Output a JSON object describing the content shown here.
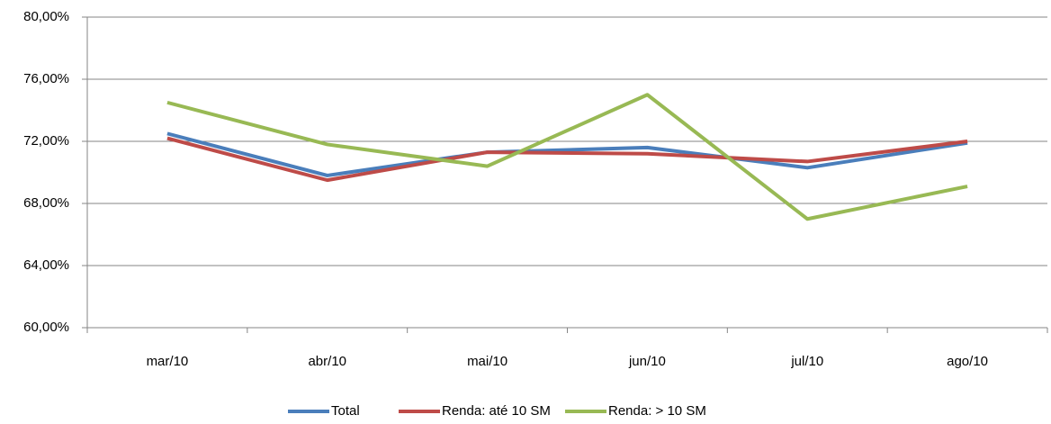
{
  "chart_data": {
    "type": "line",
    "categories": [
      "mar/10",
      "abr/10",
      "mai/10",
      "jun/10",
      "jul/10",
      "ago/10"
    ],
    "series": [
      {
        "name": "Total",
        "color": "#4a7ebb",
        "values": [
          72.5,
          69.8,
          71.3,
          71.6,
          70.3,
          71.9
        ]
      },
      {
        "name": "Renda: até 10 SM",
        "color": "#be4b48",
        "values": [
          72.2,
          69.5,
          71.3,
          71.2,
          70.7,
          72.0
        ]
      },
      {
        "name": "Renda: > 10 SM",
        "color": "#98b954",
        "values": [
          74.5,
          71.8,
          70.4,
          75.0,
          67.0,
          69.1
        ]
      }
    ],
    "ylim": [
      60,
      80
    ],
    "yticks": [
      {
        "value": 60,
        "label": "60,00%"
      },
      {
        "value": 64,
        "label": "64,00%"
      },
      {
        "value": 68,
        "label": "68,00%"
      },
      {
        "value": 72,
        "label": "72,00%"
      },
      {
        "value": 76,
        "label": "76,00%"
      },
      {
        "value": 80,
        "label": "80,00%"
      }
    ],
    "grid": true,
    "legend": "bottom"
  }
}
